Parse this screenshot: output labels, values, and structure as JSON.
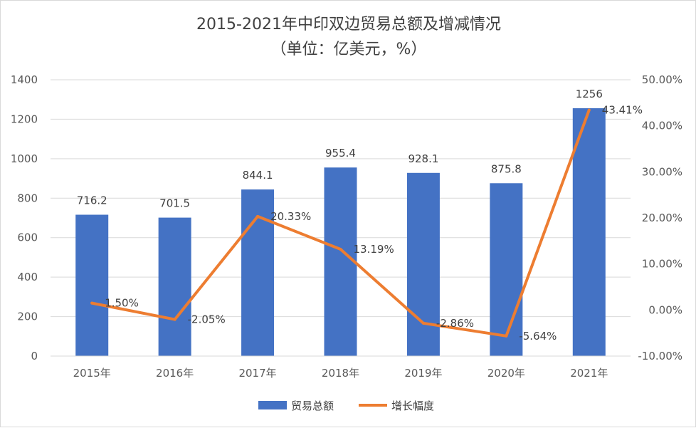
{
  "chart_data": {
    "type": "bar",
    "title": "2015-2021年中印双边贸易总额及增减情况",
    "subtitle": "（单位：亿美元，%）",
    "categories": [
      "2015年",
      "2016年",
      "2017年",
      "2018年",
      "2019年",
      "2020年",
      "2021年"
    ],
    "series": [
      {
        "name": "贸易总额",
        "type": "bar",
        "axis": "left",
        "color": "#4472C4",
        "values": [
          716.2,
          701.5,
          844.1,
          955.4,
          928.1,
          875.8,
          1256
        ],
        "labels": [
          "716.2",
          "701.5",
          "844.1",
          "955.4",
          "928.1",
          "875.8",
          "1256"
        ]
      },
      {
        "name": "增长幅度",
        "type": "line",
        "axis": "right",
        "color": "#ED7D31",
        "values": [
          1.5,
          -2.05,
          20.33,
          13.19,
          -2.86,
          -5.64,
          43.41
        ],
        "labels": [
          "1.50%",
          "-2.05%",
          "20.33%",
          "13.19%",
          "-2.86%",
          "-5.64%",
          "43.41%"
        ]
      }
    ],
    "y_left": {
      "range": [
        0,
        1400
      ],
      "ticks": [
        "0",
        "200",
        "400",
        "600",
        "800",
        "1000",
        "1200",
        "1400"
      ]
    },
    "y_right": {
      "range": [
        -10,
        50
      ],
      "ticks": [
        "-10.00%",
        "0.00%",
        "10.00%",
        "20.00%",
        "30.00%",
        "40.00%",
        "50.00%"
      ]
    },
    "grid": true,
    "legend": "bottom"
  }
}
